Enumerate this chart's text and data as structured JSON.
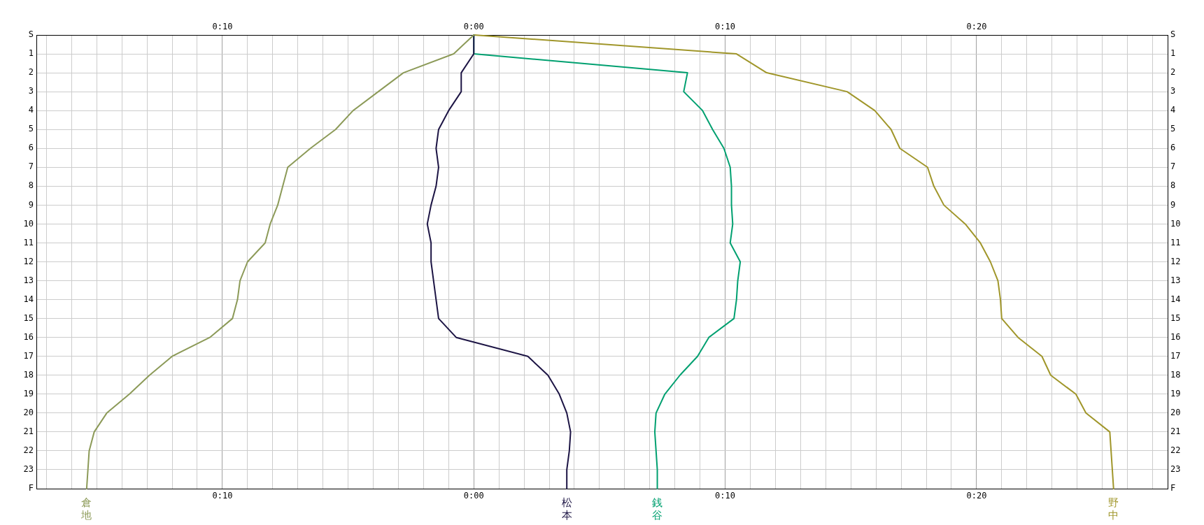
{
  "chart_data": {
    "type": "line",
    "orientation": "horizontal",
    "categories": [
      "S",
      "1",
      "2",
      "3",
      "4",
      "5",
      "6",
      "7",
      "8",
      "9",
      "10",
      "11",
      "12",
      "13",
      "14",
      "15",
      "16",
      "17",
      "18",
      "19",
      "20",
      "21",
      "22",
      "23",
      "F"
    ],
    "xlim": [
      -17.4,
      27.6
    ],
    "xticks": [
      {
        "value": -17,
        "label": null
      },
      {
        "value": -16,
        "label": null
      },
      {
        "value": -15,
        "label": null
      },
      {
        "value": -14,
        "label": null
      },
      {
        "value": -13,
        "label": null
      },
      {
        "value": -12,
        "label": null
      },
      {
        "value": -11,
        "label": null
      },
      {
        "value": -10,
        "label": "0:10"
      },
      {
        "value": -9,
        "label": null
      },
      {
        "value": -8,
        "label": null
      },
      {
        "value": -7,
        "label": null
      },
      {
        "value": -6,
        "label": null
      },
      {
        "value": -5,
        "label": null
      },
      {
        "value": -4,
        "label": null
      },
      {
        "value": -3,
        "label": null
      },
      {
        "value": -2,
        "label": null
      },
      {
        "value": -1,
        "label": null
      },
      {
        "value": 0,
        "label": "0:00"
      },
      {
        "value": 1,
        "label": null
      },
      {
        "value": 2,
        "label": null
      },
      {
        "value": 3,
        "label": null
      },
      {
        "value": 4,
        "label": null
      },
      {
        "value": 5,
        "label": null
      },
      {
        "value": 6,
        "label": null
      },
      {
        "value": 7,
        "label": null
      },
      {
        "value": 8,
        "label": null
      },
      {
        "value": 9,
        "label": null
      },
      {
        "value": 10,
        "label": "0:10"
      },
      {
        "value": 11,
        "label": null
      },
      {
        "value": 12,
        "label": null
      },
      {
        "value": 13,
        "label": null
      },
      {
        "value": 14,
        "label": null
      },
      {
        "value": 15,
        "label": null
      },
      {
        "value": 16,
        "label": null
      },
      {
        "value": 17,
        "label": null
      },
      {
        "value": 18,
        "label": null
      },
      {
        "value": 19,
        "label": null
      },
      {
        "value": 20,
        "label": "0:20"
      },
      {
        "value": 21,
        "label": null
      },
      {
        "value": 22,
        "label": null
      },
      {
        "value": 23,
        "label": null
      },
      {
        "value": 24,
        "label": null
      },
      {
        "value": 25,
        "label": null
      },
      {
        "value": 26,
        "label": null
      },
      {
        "value": 27,
        "label": null
      }
    ],
    "x2lim": [
      -17.4,
      27.6
    ],
    "x2ticks": [
      {
        "value": -10,
        "label": "0:10"
      },
      {
        "value": 0,
        "label": "0:00"
      },
      {
        "value": 10,
        "label": "0:10"
      },
      {
        "value": 20,
        "label": "0:20"
      }
    ],
    "grid": true,
    "marker": "none",
    "line_style": "solid",
    "series": [
      {
        "name": "倉地",
        "color": "#8c9a58",
        "values": [
          0,
          -0.8,
          -2.8,
          -3.8,
          -4.8,
          -5.5,
          -6.5,
          -7.4,
          -7.6,
          -7.8,
          -8.1,
          -8.3,
          -9.0,
          -9.3,
          -9.4,
          -9.6,
          -10.5,
          -12.0,
          -12.9,
          -13.7,
          -14.6,
          -15.1,
          -15.3,
          -15.35,
          -15.4
        ]
      },
      {
        "name": "松本",
        "color": "#1c1444",
        "values": [
          0,
          0,
          -0.5,
          -0.5,
          -1.0,
          -1.4,
          -1.5,
          -1.4,
          -1.5,
          -1.7,
          -1.85,
          -1.7,
          -1.7,
          -1.6,
          -1.5,
          -1.4,
          -0.7,
          2.15,
          2.95,
          3.4,
          3.7,
          3.85,
          3.8,
          3.7,
          3.7
        ]
      },
      {
        "name": "銭谷",
        "color": "#00a070",
        "values": [
          0,
          0,
          8.5,
          8.35,
          9.1,
          9.5,
          9.95,
          10.2,
          10.25,
          10.25,
          10.3,
          10.2,
          10.6,
          10.5,
          10.45,
          10.35,
          9.35,
          8.9,
          8.2,
          7.6,
          7.25,
          7.2,
          7.25,
          7.3,
          7.3
        ]
      },
      {
        "name": "野中",
        "color": "#a0962a",
        "values": [
          0,
          10.45,
          11.65,
          14.85,
          15.95,
          16.6,
          16.95,
          18.05,
          18.3,
          18.7,
          19.55,
          20.15,
          20.55,
          20.85,
          20.95,
          21.0,
          21.65,
          22.6,
          22.95,
          23.95,
          24.35,
          25.3,
          25.35,
          25.4,
          25.45
        ]
      }
    ]
  }
}
